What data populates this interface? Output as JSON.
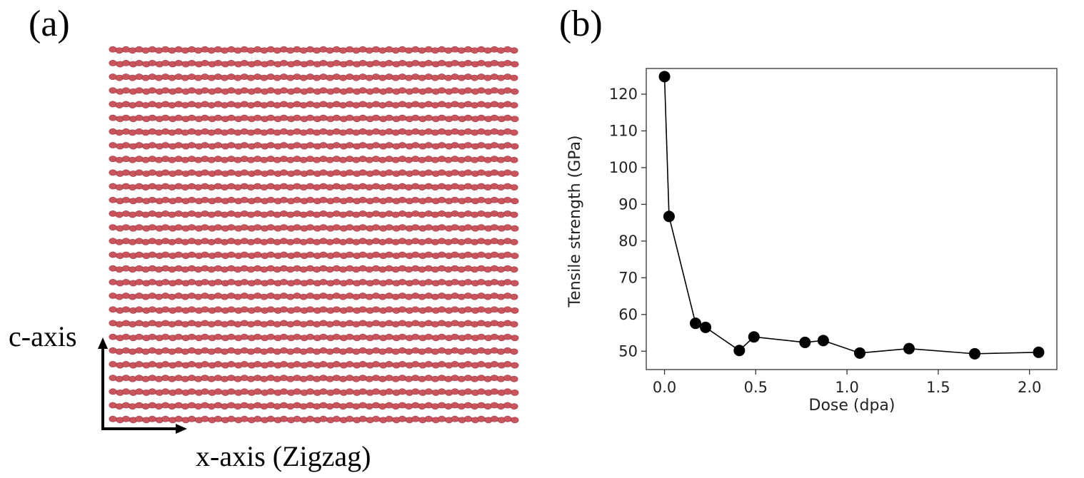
{
  "panel_a": {
    "label": "(a)",
    "c_axis_label": "c-axis",
    "x_axis_label": "x-axis  (Zigzag)",
    "atom_color": "#c9545c",
    "atom_color_dark": "#a33c45",
    "rows": 28,
    "atoms_per_row": 62
  },
  "panel_b": {
    "label": "(b)"
  },
  "chart_data": {
    "type": "line",
    "markers": true,
    "title": "",
    "xlabel": "Dose (dpa)",
    "ylabel": "Tensile strength (GPa)",
    "xlim": [
      -0.1,
      2.15
    ],
    "ylim": [
      45,
      127
    ],
    "xticks": [
      0.0,
      0.5,
      1.0,
      1.5,
      2.0
    ],
    "xtick_labels": [
      "0.0",
      "0.5",
      "1.0",
      "1.5",
      "2.0"
    ],
    "yticks": [
      50,
      60,
      70,
      80,
      90,
      100,
      110,
      120
    ],
    "ytick_labels": [
      "50",
      "60",
      "70",
      "80",
      "90",
      "100",
      "110",
      "120"
    ],
    "grid": false,
    "series": [
      {
        "color": "#000000",
        "x": [
          0.0,
          0.025,
          0.17,
          0.225,
          0.41,
          0.49,
          0.77,
          0.87,
          1.07,
          1.34,
          1.7,
          2.05
        ],
        "y": [
          124.8,
          86.7,
          57.6,
          56.5,
          50.2,
          53.9,
          52.4,
          52.9,
          49.5,
          50.7,
          49.3,
          49.7
        ]
      }
    ]
  }
}
